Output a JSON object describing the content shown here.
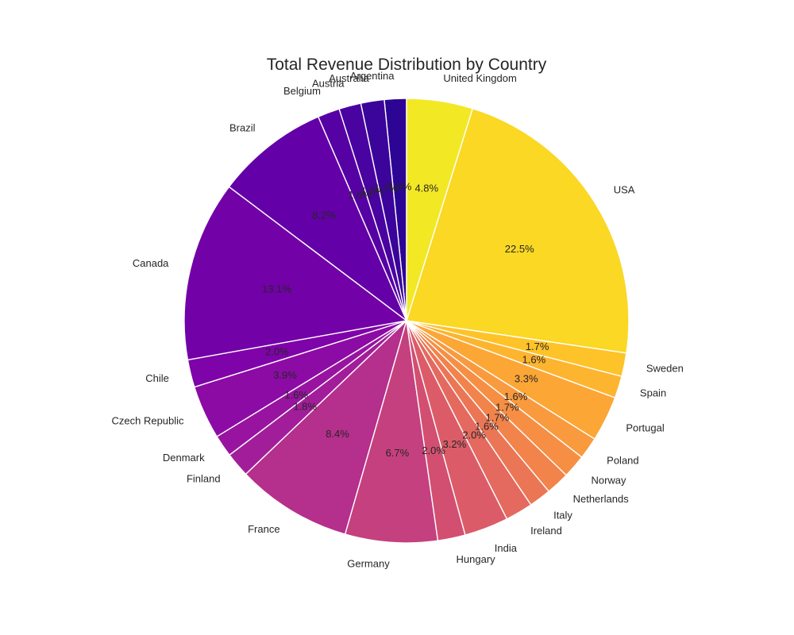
{
  "chart_data": {
    "type": "pie",
    "title": "Total Revenue Distribution by Country",
    "start_angle_deg": 90,
    "direction": "counterclockwise",
    "slices": [
      {
        "label": "Argentina",
        "value": 1.6,
        "pct_label": "1.6%",
        "color": "#2c0594"
      },
      {
        "label": "Australia",
        "value": 1.7,
        "pct_label": "1.7%",
        "color": "#3b049a"
      },
      {
        "label": "Austria",
        "value": 1.6,
        "pct_label": "1.6%",
        "color": "#4903a0"
      },
      {
        "label": "Belgium",
        "value": 1.6,
        "pct_label": "1.6%",
        "color": "#5601a4"
      },
      {
        "label": "Brazil",
        "value": 8.2,
        "pct_label": "8.2%",
        "color": "#6300a7"
      },
      {
        "label": "Canada",
        "value": 13.1,
        "pct_label": "13.1%",
        "color": "#7201a8"
      },
      {
        "label": "Chile",
        "value": 2.0,
        "pct_label": "2.0%",
        "color": "#7e03a8"
      },
      {
        "label": "Czech Republic",
        "value": 3.9,
        "pct_label": "3.9%",
        "color": "#8c0ba5"
      },
      {
        "label": "Denmark",
        "value": 1.6,
        "pct_label": "1.6%",
        "color": "#9814a0"
      },
      {
        "label": "Finland",
        "value": 1.8,
        "pct_label": "1.8%",
        "color": "#a21d9a"
      },
      {
        "label": "France",
        "value": 8.4,
        "pct_label": "8.4%",
        "color": "#b52f8c"
      },
      {
        "label": "Germany",
        "value": 6.7,
        "pct_label": "6.7%",
        "color": "#c5407e"
      },
      {
        "label": "Hungary",
        "value": 2.0,
        "pct_label": "2.0%",
        "color": "#d24f71"
      },
      {
        "label": "India",
        "value": 3.2,
        "pct_label": "3.2%",
        "color": "#db5c68"
      },
      {
        "label": "Ireland",
        "value": 2.0,
        "pct_label": "2.0%",
        "color": "#e4695e"
      },
      {
        "label": "Italy",
        "value": 1.6,
        "pct_label": "1.6%",
        "color": "#eb7655"
      },
      {
        "label": "Netherlands",
        "value": 1.7,
        "pct_label": "1.7%",
        "color": "#f1834b"
      },
      {
        "label": "Norway",
        "value": 1.7,
        "pct_label": "1.7%",
        "color": "#f68f44"
      },
      {
        "label": "Poland",
        "value": 1.6,
        "pct_label": "1.6%",
        "color": "#f99a3e"
      },
      {
        "label": "Portugal",
        "value": 3.3,
        "pct_label": "3.3%",
        "color": "#fca636"
      },
      {
        "label": "Spain",
        "value": 1.6,
        "pct_label": "1.6%",
        "color": "#fdb42f"
      },
      {
        "label": "Sweden",
        "value": 1.7,
        "pct_label": "1.7%",
        "color": "#fdc328"
      },
      {
        "label": "USA",
        "value": 22.5,
        "pct_label": "22.5%",
        "color": "#fad824"
      },
      {
        "label": "United Kingdom",
        "value": 4.8,
        "pct_label": "4.8%",
        "color": "#f3e824"
      }
    ]
  }
}
